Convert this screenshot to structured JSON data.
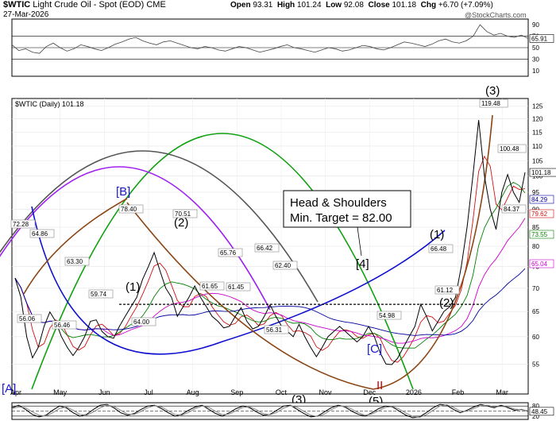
{
  "header": {
    "symbol": "$WTIC",
    "name": "Light Crude Oil - Spot (EOD)",
    "exchange": "CME",
    "date": "27-Mar-2026",
    "open_label": "Open",
    "open": "93.31",
    "high_label": "High",
    "high": "101.24",
    "low_label": "Low",
    "low": "92.08",
    "close_label": "Close",
    "close": "101.18",
    "chg_label": "Chg",
    "chg": "+6.70 (+7.09%)",
    "watermark": "@StockCharts.com"
  },
  "colors": {
    "price": "#000000",
    "ma_short": "#d01010",
    "ma_mid": "#008000",
    "ma_long": "#0000a0",
    "ma_slow": "#cc00cc",
    "cycle_blue": "#1010d0",
    "cycle_green": "#10a010",
    "cycle_brown": "#8b4513",
    "cycle_purple": "#a020f0",
    "cycle_gray": "#555555",
    "wave_blue": "#1a1acc",
    "wave_black": "#000000",
    "wave_red": "#cc0000"
  },
  "chart_data": [
    {
      "type": "line",
      "panel": "top-indicator",
      "x_labels": [],
      "ylim": [
        0,
        100
      ],
      "yticks": [
        10,
        30,
        50,
        70,
        90
      ],
      "reference_lines": [
        30,
        50,
        70
      ],
      "last_value_label": "65.91",
      "values": [
        55,
        45,
        48,
        42,
        40,
        52,
        58,
        50,
        44,
        48,
        55,
        52,
        48,
        45,
        50,
        56,
        60,
        65,
        68,
        62,
        58,
        55,
        60,
        62,
        58,
        54,
        50,
        48,
        52,
        50,
        46,
        44,
        48,
        52,
        50,
        46,
        42,
        45,
        48,
        52,
        55,
        50,
        48,
        45,
        42,
        46,
        50,
        48,
        44,
        46,
        50,
        54,
        52,
        48,
        46,
        50,
        55,
        60,
        58,
        55,
        52,
        56,
        62,
        65,
        60,
        58,
        62,
        70,
        90,
        78,
        72,
        75,
        70,
        68,
        72,
        65.91
      ]
    },
    {
      "type": "line",
      "panel": "price",
      "title": "$WTIC (Daily) 101.18",
      "x_labels": [
        "Apr",
        "May",
        "Jun",
        "Jul",
        "Aug",
        "Sep",
        "Oct",
        "Nov",
        "Dec",
        "2026",
        "Feb",
        "Mar"
      ],
      "ylim": [
        50,
        128
      ],
      "yticks": [
        55,
        60,
        65,
        70,
        75,
        80,
        85,
        90,
        95,
        100,
        105,
        110,
        115,
        120,
        125
      ],
      "scale": "log",
      "series": [
        {
          "values": [
            72.3,
            68,
            60,
            56.1,
            58,
            62,
            64.9,
            63,
            60,
            58,
            56.5,
            58,
            60,
            63,
            63.3,
            61,
            60,
            59.7,
            62,
            64,
            66,
            68,
            72,
            75,
            78.4,
            74,
            70,
            68,
            64,
            66,
            68,
            70.5,
            68,
            66,
            64,
            63,
            61.7,
            62,
            64,
            65.8,
            63,
            61.5,
            62,
            64,
            66.4,
            64,
            62,
            61,
            60,
            62.4,
            60,
            58,
            56.3,
            58,
            60,
            61,
            62,
            61,
            60,
            59,
            60,
            62,
            60,
            57,
            55,
            54.9,
            56,
            58,
            60,
            62,
            66.5,
            64,
            61.1,
            63,
            65,
            66,
            68,
            75,
            85,
            100,
            119.5,
            100,
            90,
            84.4,
            95,
            100.5,
            95,
            92,
            101.2
          ]
        }
      ],
      "moving_average_labels": [
        "84.29",
        "79.62",
        "73.55",
        "65.04"
      ],
      "point_labels": [
        "72.28",
        "56.06",
        "64.86",
        "56.46",
        "63.30",
        "59.74",
        "78.40",
        "64.00",
        "70.51",
        "61.65",
        "65.76",
        "61.45",
        "66.42",
        "62.40",
        "56.31",
        "54.98",
        "66.48",
        "61.12",
        "119.48",
        "100.48",
        "84.37"
      ],
      "last_value_label": "101.18",
      "annotation_title": "Head & Shoulders",
      "annotation_target": "Min. Target = 82.00",
      "wave_labels": [
        "[A]",
        "[B]",
        "(1)",
        "(2)",
        "(3)",
        "[4]",
        "(5)",
        "[C]",
        "(1)",
        "(2)",
        "(3)",
        "II"
      ]
    },
    {
      "type": "line",
      "panel": "bottom-indicator",
      "x_labels": [
        "Apr",
        "May",
        "Jun",
        "Jul",
        "Aug",
        "Sep",
        "Oct",
        "Nov",
        "Dec",
        "2026",
        "Feb",
        "Mar"
      ],
      "ylim": [
        0,
        100
      ],
      "yticks": [
        20,
        50,
        80
      ],
      "reference_lines": [
        20,
        50,
        80
      ],
      "last_value_label": "48.45",
      "series": [
        {
          "name": "",
          "values": [
            70,
            85,
            60,
            30,
            15,
            25,
            55,
            80,
            70,
            40,
            20,
            30,
            60,
            85,
            90,
            70,
            40,
            25,
            35,
            60,
            80,
            85,
            65,
            40,
            20,
            30,
            55,
            75,
            85,
            60,
            35,
            20,
            40,
            65,
            80,
            70,
            45,
            25,
            30,
            55,
            80,
            85,
            60,
            35,
            15,
            20,
            45,
            70,
            85,
            75,
            50,
            30,
            20,
            40,
            65,
            80,
            75,
            50,
            25,
            10,
            15,
            40,
            70,
            90,
            85,
            60,
            40,
            55,
            75,
            90,
            80,
            70,
            85,
            70,
            55,
            60,
            48.45
          ]
        },
        {
          "name": "",
          "values": [
            65,
            75,
            70,
            45,
            25,
            20,
            40,
            65,
            75,
            55,
            30,
            25,
            45,
            70,
            85,
            78,
            55,
            32,
            30,
            48,
            70,
            82,
            75,
            52,
            30,
            25,
            42,
            65,
            80,
            72,
            48,
            28,
            32,
            52,
            72,
            75,
            58,
            35,
            28,
            42,
            68,
            82,
            72,
            48,
            25,
            18,
            32,
            58,
            78,
            80,
            62,
            40,
            25,
            32,
            52,
            72,
            78,
            62,
            38,
            18,
            12,
            28,
            55,
            80,
            88,
            72,
            50,
            48,
            65,
            82,
            85,
            75,
            78,
            75,
            62,
            58,
            52
          ]
        }
      ]
    }
  ]
}
